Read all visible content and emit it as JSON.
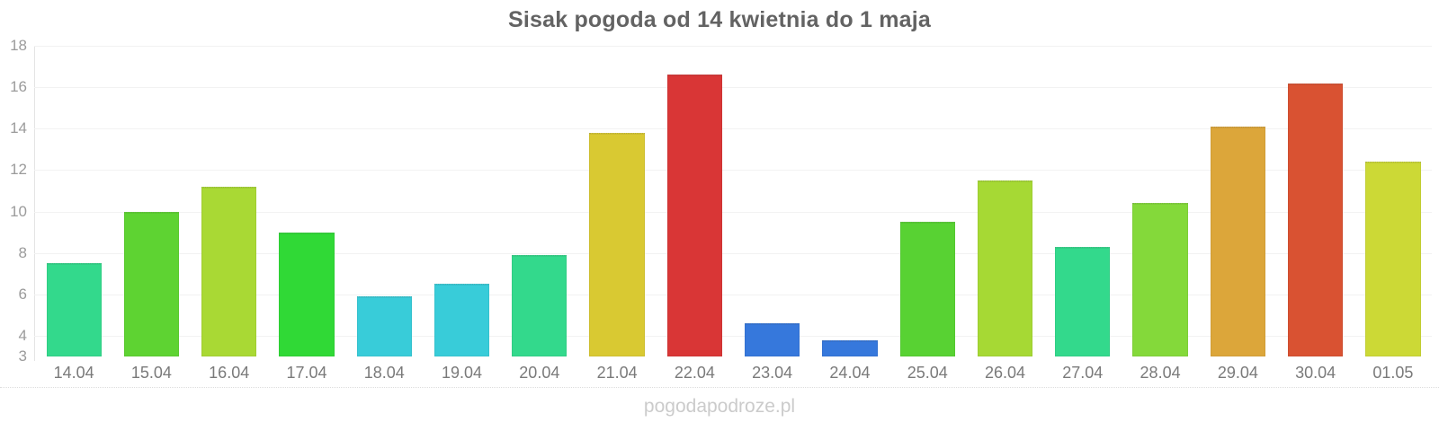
{
  "title": "Sisak pogoda od 14 kwietnia do 1 maja",
  "watermark": "pogodapodroze.pl",
  "colors": {
    "background": "#ffffff",
    "title_text": "#636363",
    "y_label_text": "#9b9b9b",
    "x_label_text": "#7a7a7a",
    "gridline": "#f2f2f2",
    "axis_line": "#e4e4e4",
    "watermark_text": "#cbcbcb"
  },
  "chart_data": {
    "type": "bar",
    "title": "Sisak pogoda od 14 kwietnia do 1 maja",
    "xlabel": "",
    "ylabel": "",
    "ylim": [
      3,
      18
    ],
    "baseline": 3,
    "ytick_labels": [
      "18",
      "16",
      "14",
      "12",
      "10",
      "8",
      "6",
      "4",
      "3"
    ],
    "ytick_values": [
      18,
      16,
      14,
      12,
      10,
      8,
      6,
      4,
      3
    ],
    "gridline_values": [
      18,
      16,
      14,
      12,
      10,
      8,
      6,
      4
    ],
    "grid": true,
    "legend_position": "none",
    "categories": [
      "14.04",
      "15.04",
      "16.04",
      "17.04",
      "18.04",
      "19.04",
      "20.04",
      "21.04",
      "22.04",
      "23.04",
      "24.04",
      "25.04",
      "26.04",
      "27.04",
      "28.04",
      "29.04",
      "30.04",
      "01.05"
    ],
    "values": [
      7.5,
      10.0,
      11.2,
      9.0,
      5.9,
      6.5,
      7.9,
      13.8,
      16.6,
      4.6,
      3.8,
      9.5,
      11.5,
      8.3,
      10.4,
      14.1,
      16.2,
      12.4
    ],
    "bar_colors": [
      "#33d98c",
      "#5ed332",
      "#a9d934",
      "#30d936",
      "#38ccd9",
      "#38ccd9",
      "#33d98c",
      "#d9c932",
      "#d93636",
      "#3678dc",
      "#3678dc",
      "#58d233",
      "#a6d934",
      "#33d98c",
      "#84d93a",
      "#dca63a",
      "#d95232",
      "#ccd936"
    ]
  }
}
